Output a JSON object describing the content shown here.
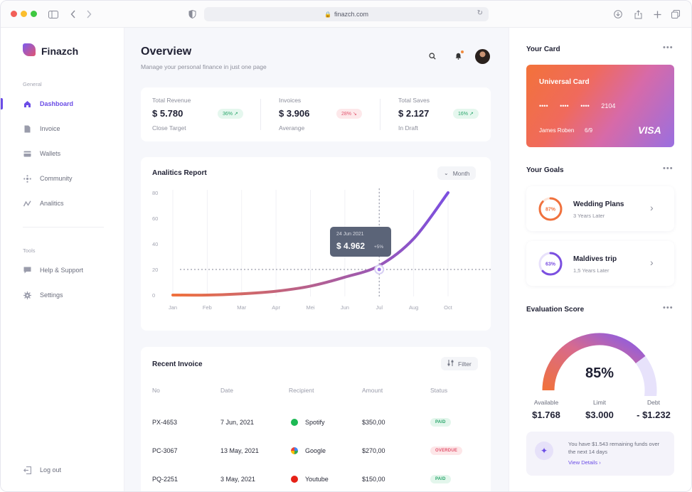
{
  "browser": {
    "url": "finazch.com",
    "traffic_colors": [
      "#f25f58",
      "#fbbe2e",
      "#3ec840"
    ]
  },
  "sidebar": {
    "brand": "Finazch",
    "general_label": "General",
    "items": [
      {
        "label": "Dashboard",
        "icon": "home-icon",
        "active": true
      },
      {
        "label": "Invoice",
        "icon": "document-icon",
        "active": false
      },
      {
        "label": "Wallets",
        "icon": "wallet-icon",
        "active": false
      },
      {
        "label": "Community",
        "icon": "community-icon",
        "active": false
      },
      {
        "label": "Analitics",
        "icon": "analytics-icon",
        "active": false
      }
    ],
    "tools_label": "Tools",
    "tools": [
      {
        "label": "Help & Support",
        "icon": "chat-icon"
      },
      {
        "label": "Settings",
        "icon": "gear-icon"
      }
    ],
    "logout": "Log out"
  },
  "header": {
    "title": "Overview",
    "subtitle": "Manage your personal finance in just one page"
  },
  "stats": [
    {
      "label": "Total Revenue",
      "value": "$ 5.780",
      "sub": "Close Target",
      "badge": "36% ↗",
      "trend": "up"
    },
    {
      "label": "Invoices",
      "value": "$ 3.906",
      "sub": "Averange",
      "badge": "28% ↘",
      "trend": "down"
    },
    {
      "label": "Total Saves",
      "value": "$ 2.127",
      "sub": "In Draft",
      "badge": "16% ↗",
      "trend": "up"
    }
  ],
  "analytics": {
    "title": "Analitics Report",
    "period_button": "Month",
    "tooltip_date": "24 Jun 2021",
    "tooltip_value": "$ 4.962",
    "tooltip_change": "+5%"
  },
  "chart_data": {
    "type": "line",
    "categories": [
      "Jan",
      "Feb",
      "Mar",
      "Apr",
      "Mei",
      "Jun",
      "Jul",
      "Aug",
      "Oct"
    ],
    "values": [
      0,
      0,
      1,
      3,
      7,
      14,
      23,
      44,
      80
    ],
    "ylim": [
      0,
      80
    ],
    "yticks": [
      0,
      20,
      40,
      60,
      80
    ],
    "highlight": {
      "x": "Jul",
      "y": 20
    },
    "gradient": [
      "#f0713d",
      "#7b4fe0"
    ]
  },
  "invoice": {
    "title": "Recent Invoice",
    "filter_button": "Filter",
    "columns": [
      "No",
      "Date",
      "Recipient",
      "Amount",
      "Status"
    ],
    "rows": [
      {
        "no": "PX-4653",
        "date": "7 Jun, 2021",
        "recipient": "Spotify",
        "recipient_color": "#1db954",
        "amount": "$350,00",
        "status": "PAID",
        "status_type": "paid"
      },
      {
        "no": "PC-3067",
        "date": "13 May, 2021",
        "recipient": "Google",
        "recipient_color": "#4285f4",
        "amount": "$270,00",
        "status": "OVERDUE",
        "status_type": "overdue"
      },
      {
        "no": "PQ-2251",
        "date": "3 May, 2021",
        "recipient": "Youtube",
        "recipient_color": "#e62117",
        "amount": "$150,00",
        "status": "PAID",
        "status_type": "paid"
      }
    ]
  },
  "right": {
    "card_title": "Your Card",
    "card": {
      "name": "Universal Card",
      "number": "•••• •••• •••• 2104",
      "holder": "James Roben",
      "expiry": "6/9",
      "brand": "VISA"
    },
    "goals_title": "Your Goals",
    "goals": [
      {
        "title": "Wedding Plans",
        "sub": "3 Years Later",
        "percent": 87,
        "percent_label": "87%",
        "color": "#f0713d"
      },
      {
        "title": "Maldives trip",
        "sub": "1,5 Years Later",
        "percent": 63,
        "percent_label": "63%",
        "color": "#7b4fe0"
      }
    ],
    "score_title": "Evaluation Score",
    "score": {
      "percent": 85,
      "label": "85%"
    },
    "score_stats": [
      {
        "label": "Available",
        "value": "$1.768"
      },
      {
        "label": "Limit",
        "value": "$3.000"
      },
      {
        "label": "Debt",
        "value": "- $1.232"
      }
    ],
    "promo_text": "You have $1.543 remaining funds over the next 14 days",
    "promo_link": "View Details"
  }
}
